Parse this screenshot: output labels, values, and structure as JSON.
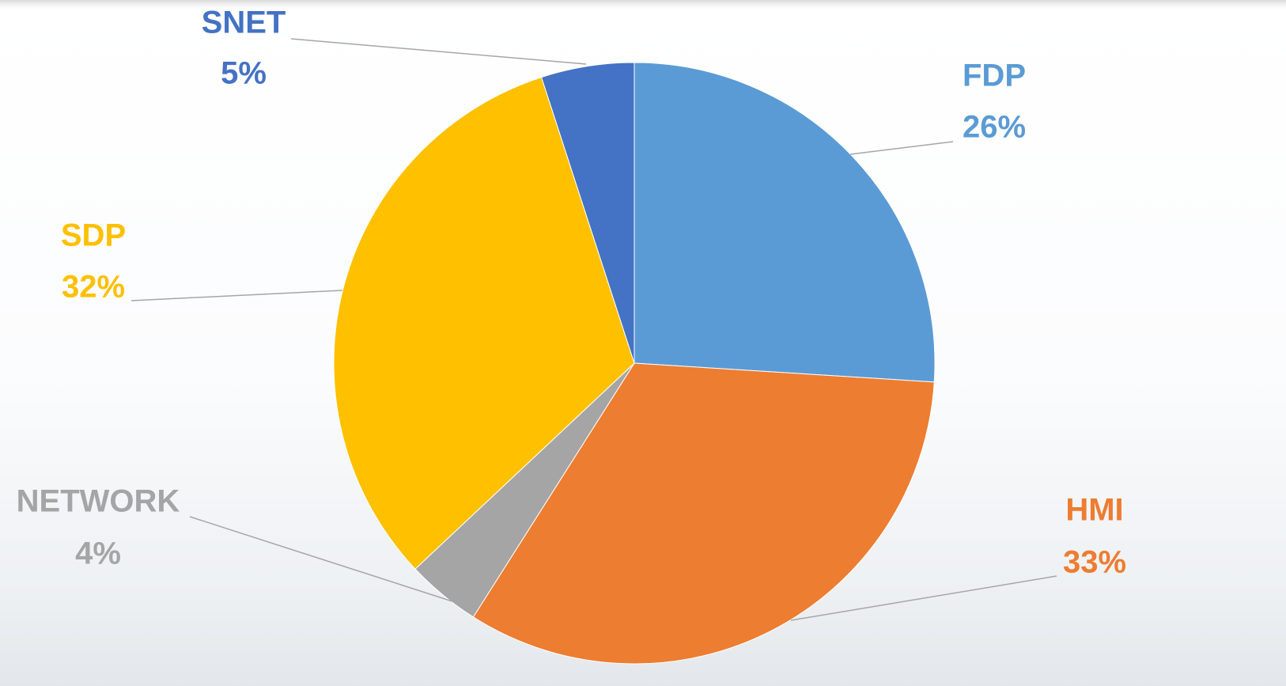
{
  "chart_data": {
    "type": "pie",
    "categories": [
      "FDP",
      "HMI",
      "NETWORK",
      "SDP",
      "SNET"
    ],
    "values": [
      26,
      33,
      4,
      32,
      5
    ],
    "value_labels": [
      "26%",
      "33%",
      "4%",
      "32%",
      "5%"
    ],
    "colors": [
      "#5b9bd5",
      "#ed7d31",
      "#a5a5a5",
      "#ffc000",
      "#4472c4"
    ]
  }
}
